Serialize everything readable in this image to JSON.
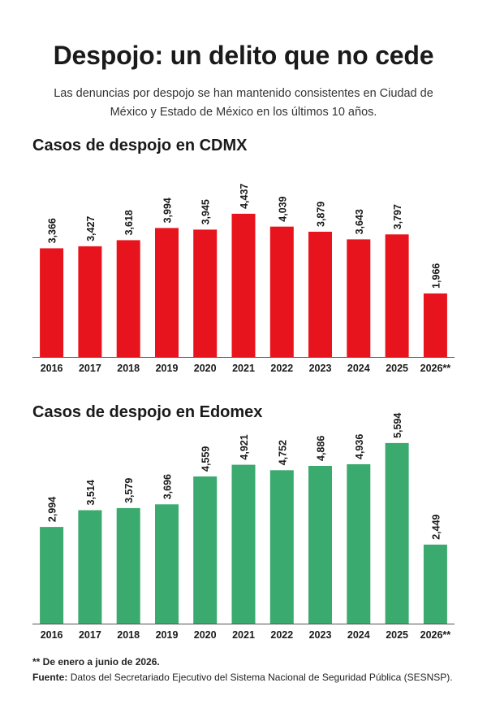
{
  "header": {
    "title": "Despojo: un delito que no cede",
    "subtitle": "Las denuncias por despojo se han mantenido consistentes en Ciudad de México y Estado de México en los últimos 10 años."
  },
  "chart_data": [
    {
      "type": "bar",
      "title": "Casos de despojo en CDMX",
      "color": "#e8141d",
      "categories": [
        "2016",
        "2017",
        "2018",
        "2019",
        "2020",
        "2021",
        "2022",
        "2023",
        "2024",
        "2025",
        "2026**"
      ],
      "values": [
        3366,
        3427,
        3618,
        3994,
        3945,
        4437,
        4039,
        3879,
        3643,
        3797,
        1966
      ],
      "labels": [
        "3,366",
        "3,427",
        "3,618",
        "3,994",
        "3,945",
        "4,437",
        "4,039",
        "3,879",
        "3,643",
        "3,797",
        "1,966"
      ]
    },
    {
      "type": "bar",
      "title": "Casos de despojo en Edomex",
      "color": "#3aaa6e",
      "categories": [
        "2016",
        "2017",
        "2018",
        "2019",
        "2020",
        "2021",
        "2022",
        "2023",
        "2024",
        "2025",
        "2026**"
      ],
      "values": [
        2994,
        3514,
        3579,
        3696,
        4559,
        4921,
        4752,
        4886,
        4936,
        5594,
        2449
      ],
      "labels": [
        "2,994",
        "3,514",
        "3,579",
        "3,696",
        "4,559",
        "4,921",
        "4,752",
        "4,886",
        "4,936",
        "5,594",
        "2,449"
      ]
    }
  ],
  "footer": {
    "note": "** De enero a junio de 2026.",
    "source_label": "Fuente:",
    "source_text": "Datos del Secretariado Ejecutivo del Sistema Nacional de Seguridad Pública (SESNSP)."
  }
}
